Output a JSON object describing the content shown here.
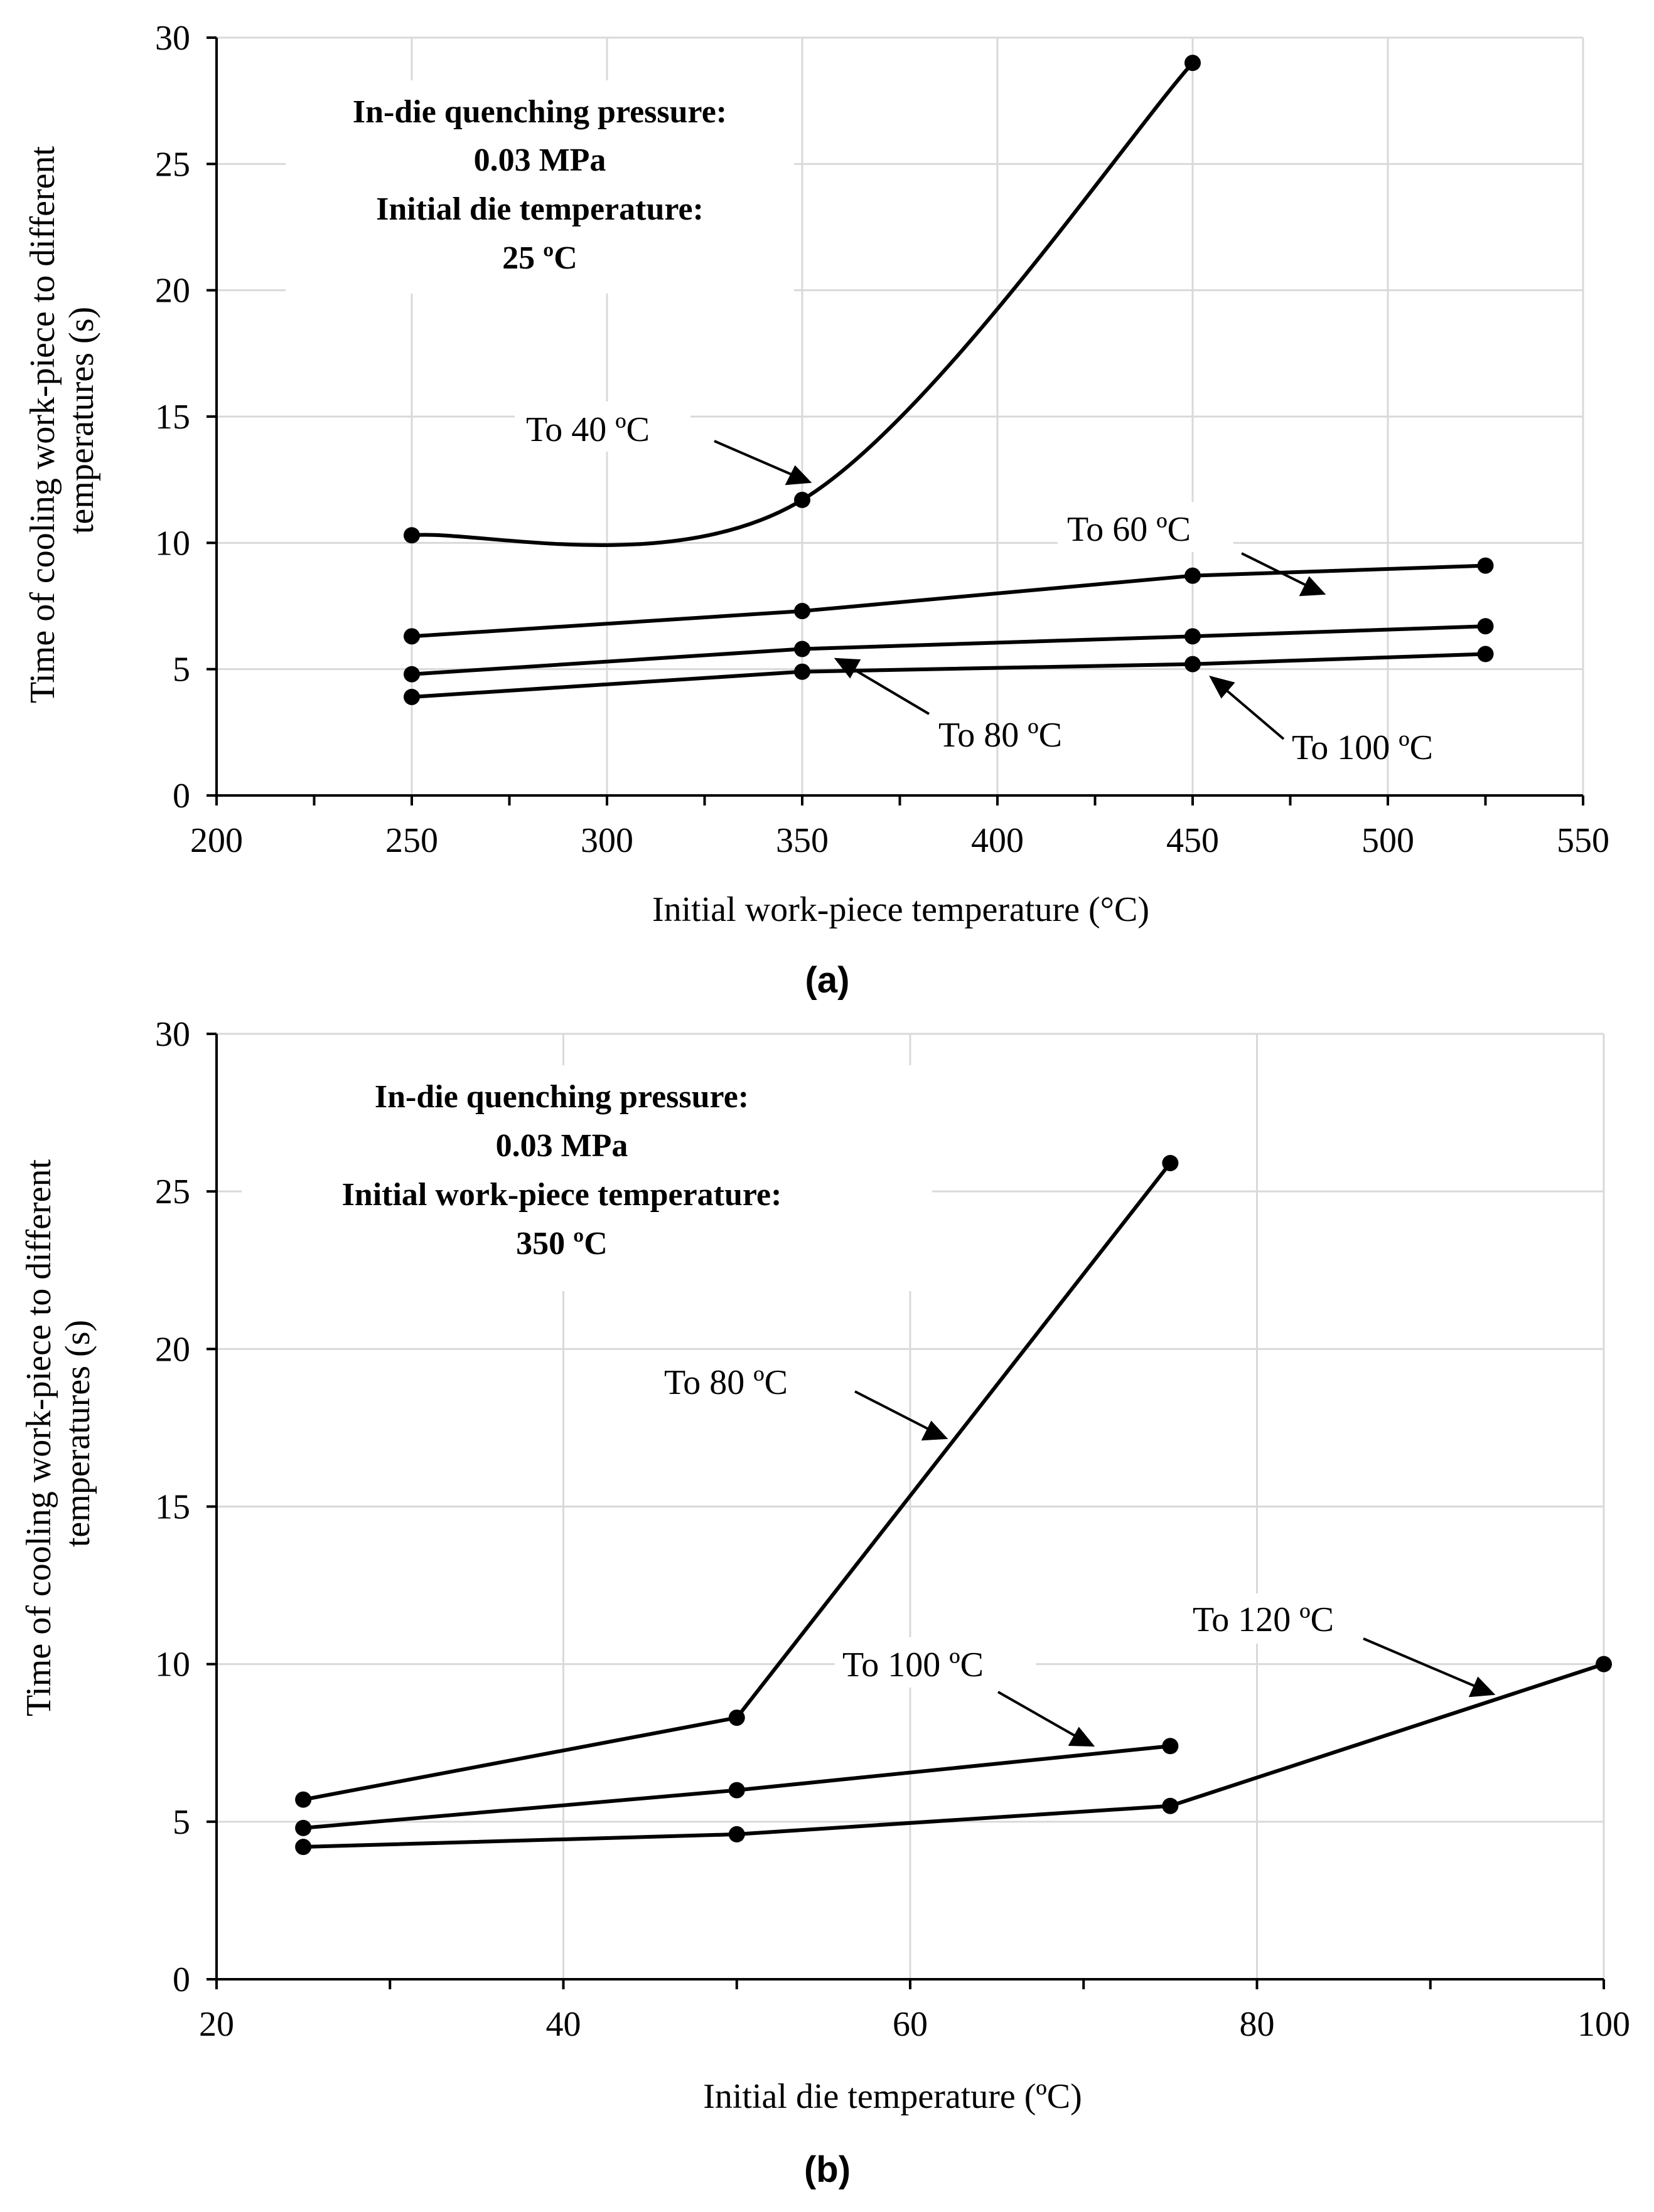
{
  "colors": {
    "grid": "#d9d9d9",
    "axis": "#000000",
    "line": "#000000",
    "text": "#000000",
    "background": "#ffffff"
  },
  "chart_data": [
    {
      "type": "line",
      "panel_label": "(a)",
      "xlabel": "Initial work-piece temperature (°C)",
      "ylabel_lines": [
        "Time of cooling work-piece to different",
        "temperatures (s)"
      ],
      "xlim": [
        200,
        550
      ],
      "ylim": [
        0,
        30
      ],
      "xticks": [
        200,
        250,
        300,
        350,
        400,
        450,
        500,
        550
      ],
      "yticks": [
        0,
        5,
        10,
        15,
        20,
        25,
        30
      ],
      "grid": true,
      "info_lines": [
        "In-die quenching pressure:",
        "0.03 MPa",
        "Initial die temperature:",
        "25 ºC"
      ],
      "series": [
        {
          "name": "To 40 ºC",
          "x": [
            250,
            350,
            450
          ],
          "y": [
            10.3,
            11.7,
            29.0
          ],
          "smooth": true
        },
        {
          "name": "To 60 ºC",
          "x": [
            250,
            350,
            450,
            525
          ],
          "y": [
            6.3,
            7.3,
            8.7,
            9.1
          ]
        },
        {
          "name": "To 80 ºC",
          "x": [
            250,
            350,
            450,
            525
          ],
          "y": [
            4.8,
            5.8,
            6.3,
            6.7
          ]
        },
        {
          "name": "To 100 ºC",
          "x": [
            250,
            350,
            450,
            525
          ],
          "y": [
            3.9,
            4.9,
            5.2,
            5.6
          ]
        }
      ]
    },
    {
      "type": "line",
      "panel_label": "(b)",
      "xlabel": "Initial die temperature (ºC)",
      "ylabel_lines": [
        "Time of cooling work-piece to different",
        "temperatures (s)"
      ],
      "xlim": [
        20,
        100
      ],
      "ylim": [
        0,
        30
      ],
      "xticks": [
        20,
        40,
        60,
        80,
        100
      ],
      "yticks": [
        0,
        5,
        10,
        15,
        20,
        25,
        30
      ],
      "grid": true,
      "info_lines": [
        "In-die quenching pressure:",
        "0.03 MPa",
        "Initial work-piece temperature:",
        "350 ºC"
      ],
      "series": [
        {
          "name": "To 80 ºC",
          "x": [
            25,
            50,
            75
          ],
          "y": [
            5.7,
            8.3,
            25.9
          ]
        },
        {
          "name": "To 100 ºC",
          "x": [
            25,
            50,
            75
          ],
          "y": [
            4.8,
            6.0,
            7.4
          ]
        },
        {
          "name": "To 120 ºC",
          "x": [
            25,
            50,
            75,
            100
          ],
          "y": [
            4.2,
            4.6,
            5.5,
            10.0
          ]
        }
      ]
    }
  ]
}
